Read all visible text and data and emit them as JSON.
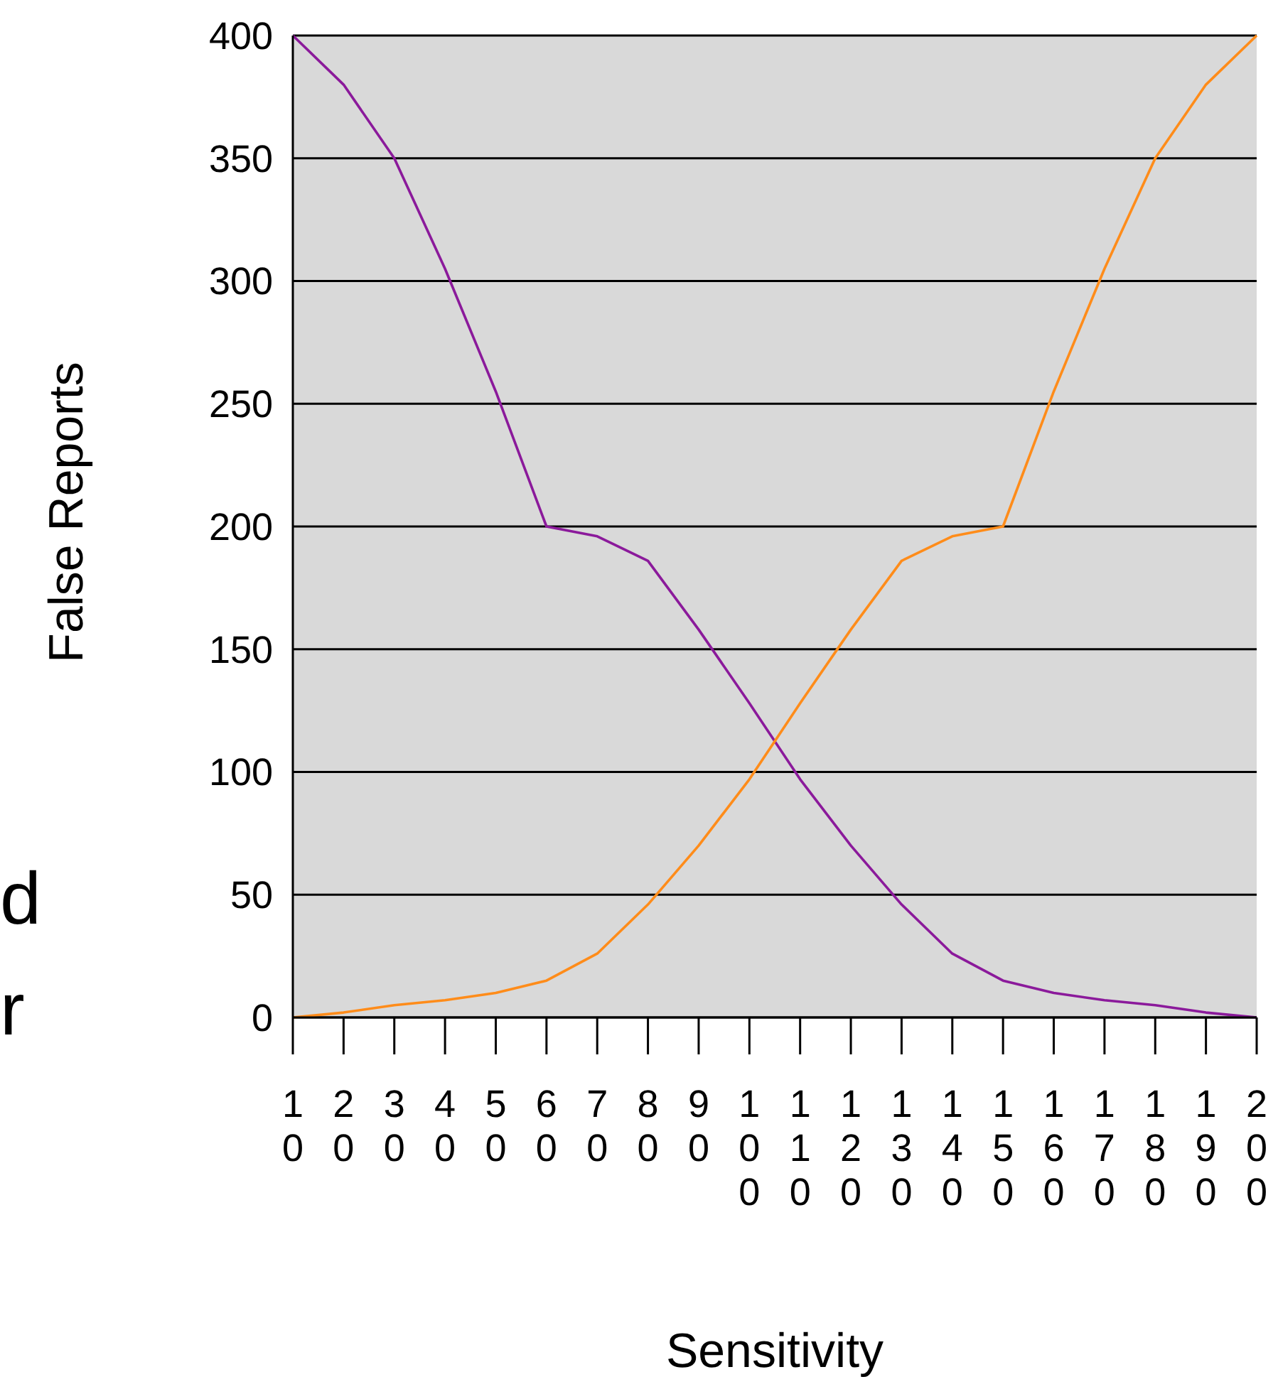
{
  "chart_data": {
    "type": "line",
    "xlabel": "Sensitivity",
    "ylabel": "False Reports",
    "categories": [
      "10",
      "20",
      "30",
      "40",
      "50",
      "60",
      "70",
      "80",
      "90",
      "100",
      "110",
      "120",
      "130",
      "140",
      "150",
      "160",
      "170",
      "180",
      "190",
      "200"
    ],
    "series": [
      {
        "color": "#8b1a9b",
        "values": [
          400,
          380,
          350,
          305,
          255,
          200,
          196,
          186,
          158,
          128,
          97,
          70,
          46,
          26,
          15,
          10,
          7,
          5,
          2,
          0
        ]
      },
      {
        "color": "#ff8c1a",
        "values": [
          0,
          2,
          5,
          7,
          10,
          15,
          26,
          46,
          70,
          97,
          128,
          158,
          186,
          196,
          200,
          255,
          305,
          350,
          380,
          400
        ]
      }
    ],
    "ylim": [
      0,
      400
    ],
    "yticks": [
      0,
      50,
      100,
      150,
      200,
      250,
      300,
      350,
      400
    ],
    "grid": "y",
    "annotations": [
      "d",
      "r"
    ]
  }
}
